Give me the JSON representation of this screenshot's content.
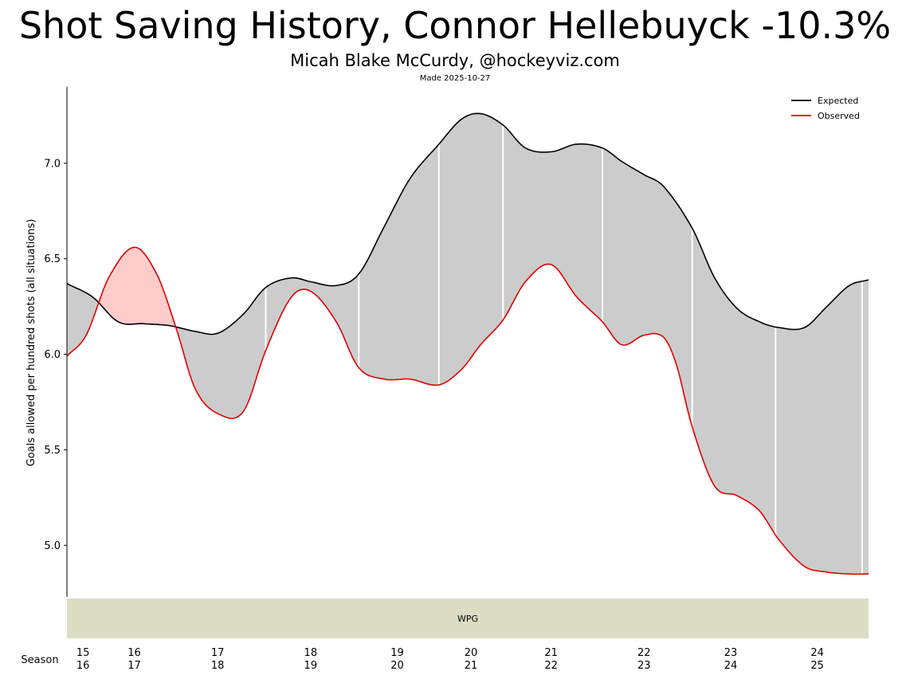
{
  "header": {
    "title": "Shot Saving History, Connor Hellebuyck -10.3%",
    "subtitle": "Micah Blake McCurdy, @hockeyviz.com",
    "made": "Made 2025-10-27"
  },
  "colors": {
    "expected": "#000000",
    "observed": "#e00000",
    "fill_better": "#cccccc",
    "fill_worse": "#ffcccc",
    "team_band": "#ddddc4"
  },
  "chart_data": {
    "type": "area",
    "ylabel": "Goals allowed per hundred shots (all situations)",
    "xlabel": "Season",
    "ylim": [
      4.73,
      7.4
    ],
    "yticks": [
      5.0,
      5.5,
      6.0,
      6.5,
      7.0
    ],
    "ytick_labels": [
      "5.0",
      "5.5",
      "6.0",
      "6.5",
      "7.0"
    ],
    "xlim": [
      0,
      25
    ],
    "season_ticks": [
      {
        "x": 0.5,
        "top": "15",
        "bottom": "16"
      },
      {
        "x": 2.1,
        "top": "16",
        "bottom": "17"
      },
      {
        "x": 4.7,
        "top": "17",
        "bottom": "18"
      },
      {
        "x": 7.6,
        "top": "18",
        "bottom": "19"
      },
      {
        "x": 10.3,
        "top": "19",
        "bottom": "20"
      },
      {
        "x": 12.6,
        "top": "20",
        "bottom": "21"
      },
      {
        "x": 15.1,
        "top": "21",
        "bottom": "22"
      },
      {
        "x": 18.0,
        "top": "22",
        "bottom": "23"
      },
      {
        "x": 20.7,
        "top": "23",
        "bottom": "24"
      },
      {
        "x": 23.4,
        "top": "24",
        "bottom": "25"
      }
    ],
    "season_boundaries": [
      6.2,
      9.1,
      11.6,
      13.6,
      16.7,
      19.5,
      22.1,
      24.8
    ],
    "legend": {
      "placement": "top-right",
      "entries": [
        "Expected",
        "Observed"
      ]
    },
    "series": [
      {
        "name": "Expected",
        "x": [
          0,
          0.8,
          1.6,
          2.4,
          3.2,
          4.0,
          4.7,
          5.5,
          6.2,
          7.0,
          7.6,
          8.4,
          9.1,
          9.9,
          10.7,
          11.6,
          12.3,
          12.9,
          13.6,
          14.3,
          15.1,
          15.9,
          16.7,
          17.3,
          18.0,
          18.6,
          19.5,
          20.2,
          20.9,
          21.6,
          22.2,
          23.0,
          23.7,
          24.4,
          25.0
        ],
        "y": [
          6.37,
          6.3,
          6.17,
          6.16,
          6.15,
          6.12,
          6.11,
          6.21,
          6.35,
          6.4,
          6.38,
          6.36,
          6.42,
          6.67,
          6.92,
          7.1,
          7.23,
          7.26,
          7.2,
          7.08,
          7.06,
          7.1,
          7.08,
          7.01,
          6.94,
          6.88,
          6.66,
          6.4,
          6.24,
          6.17,
          6.14,
          6.14,
          6.25,
          6.36,
          6.39
        ]
      },
      {
        "name": "Observed",
        "x": [
          0,
          0.6,
          1.3,
          2.1,
          2.8,
          3.4,
          4.0,
          4.7,
          5.5,
          6.2,
          7.0,
          7.6,
          8.4,
          9.1,
          9.9,
          10.7,
          11.6,
          12.3,
          12.9,
          13.6,
          14.3,
          15.1,
          15.9,
          16.7,
          17.3,
          18.0,
          18.6,
          19.0,
          19.5,
          20.2,
          20.9,
          21.6,
          22.2,
          23.0,
          23.7,
          24.4,
          25.0
        ],
        "y": [
          5.99,
          6.1,
          6.4,
          6.56,
          6.42,
          6.14,
          5.82,
          5.69,
          5.7,
          6.02,
          6.3,
          6.33,
          6.17,
          5.93,
          5.87,
          5.87,
          5.84,
          5.92,
          6.05,
          6.18,
          6.38,
          6.47,
          6.3,
          6.17,
          6.05,
          6.1,
          6.09,
          5.95,
          5.62,
          5.31,
          5.26,
          5.18,
          5.03,
          4.89,
          4.86,
          4.85,
          4.85
        ]
      }
    ],
    "teams": [
      {
        "name": "WPG",
        "x_start": 0,
        "x_end": 25
      }
    ]
  }
}
